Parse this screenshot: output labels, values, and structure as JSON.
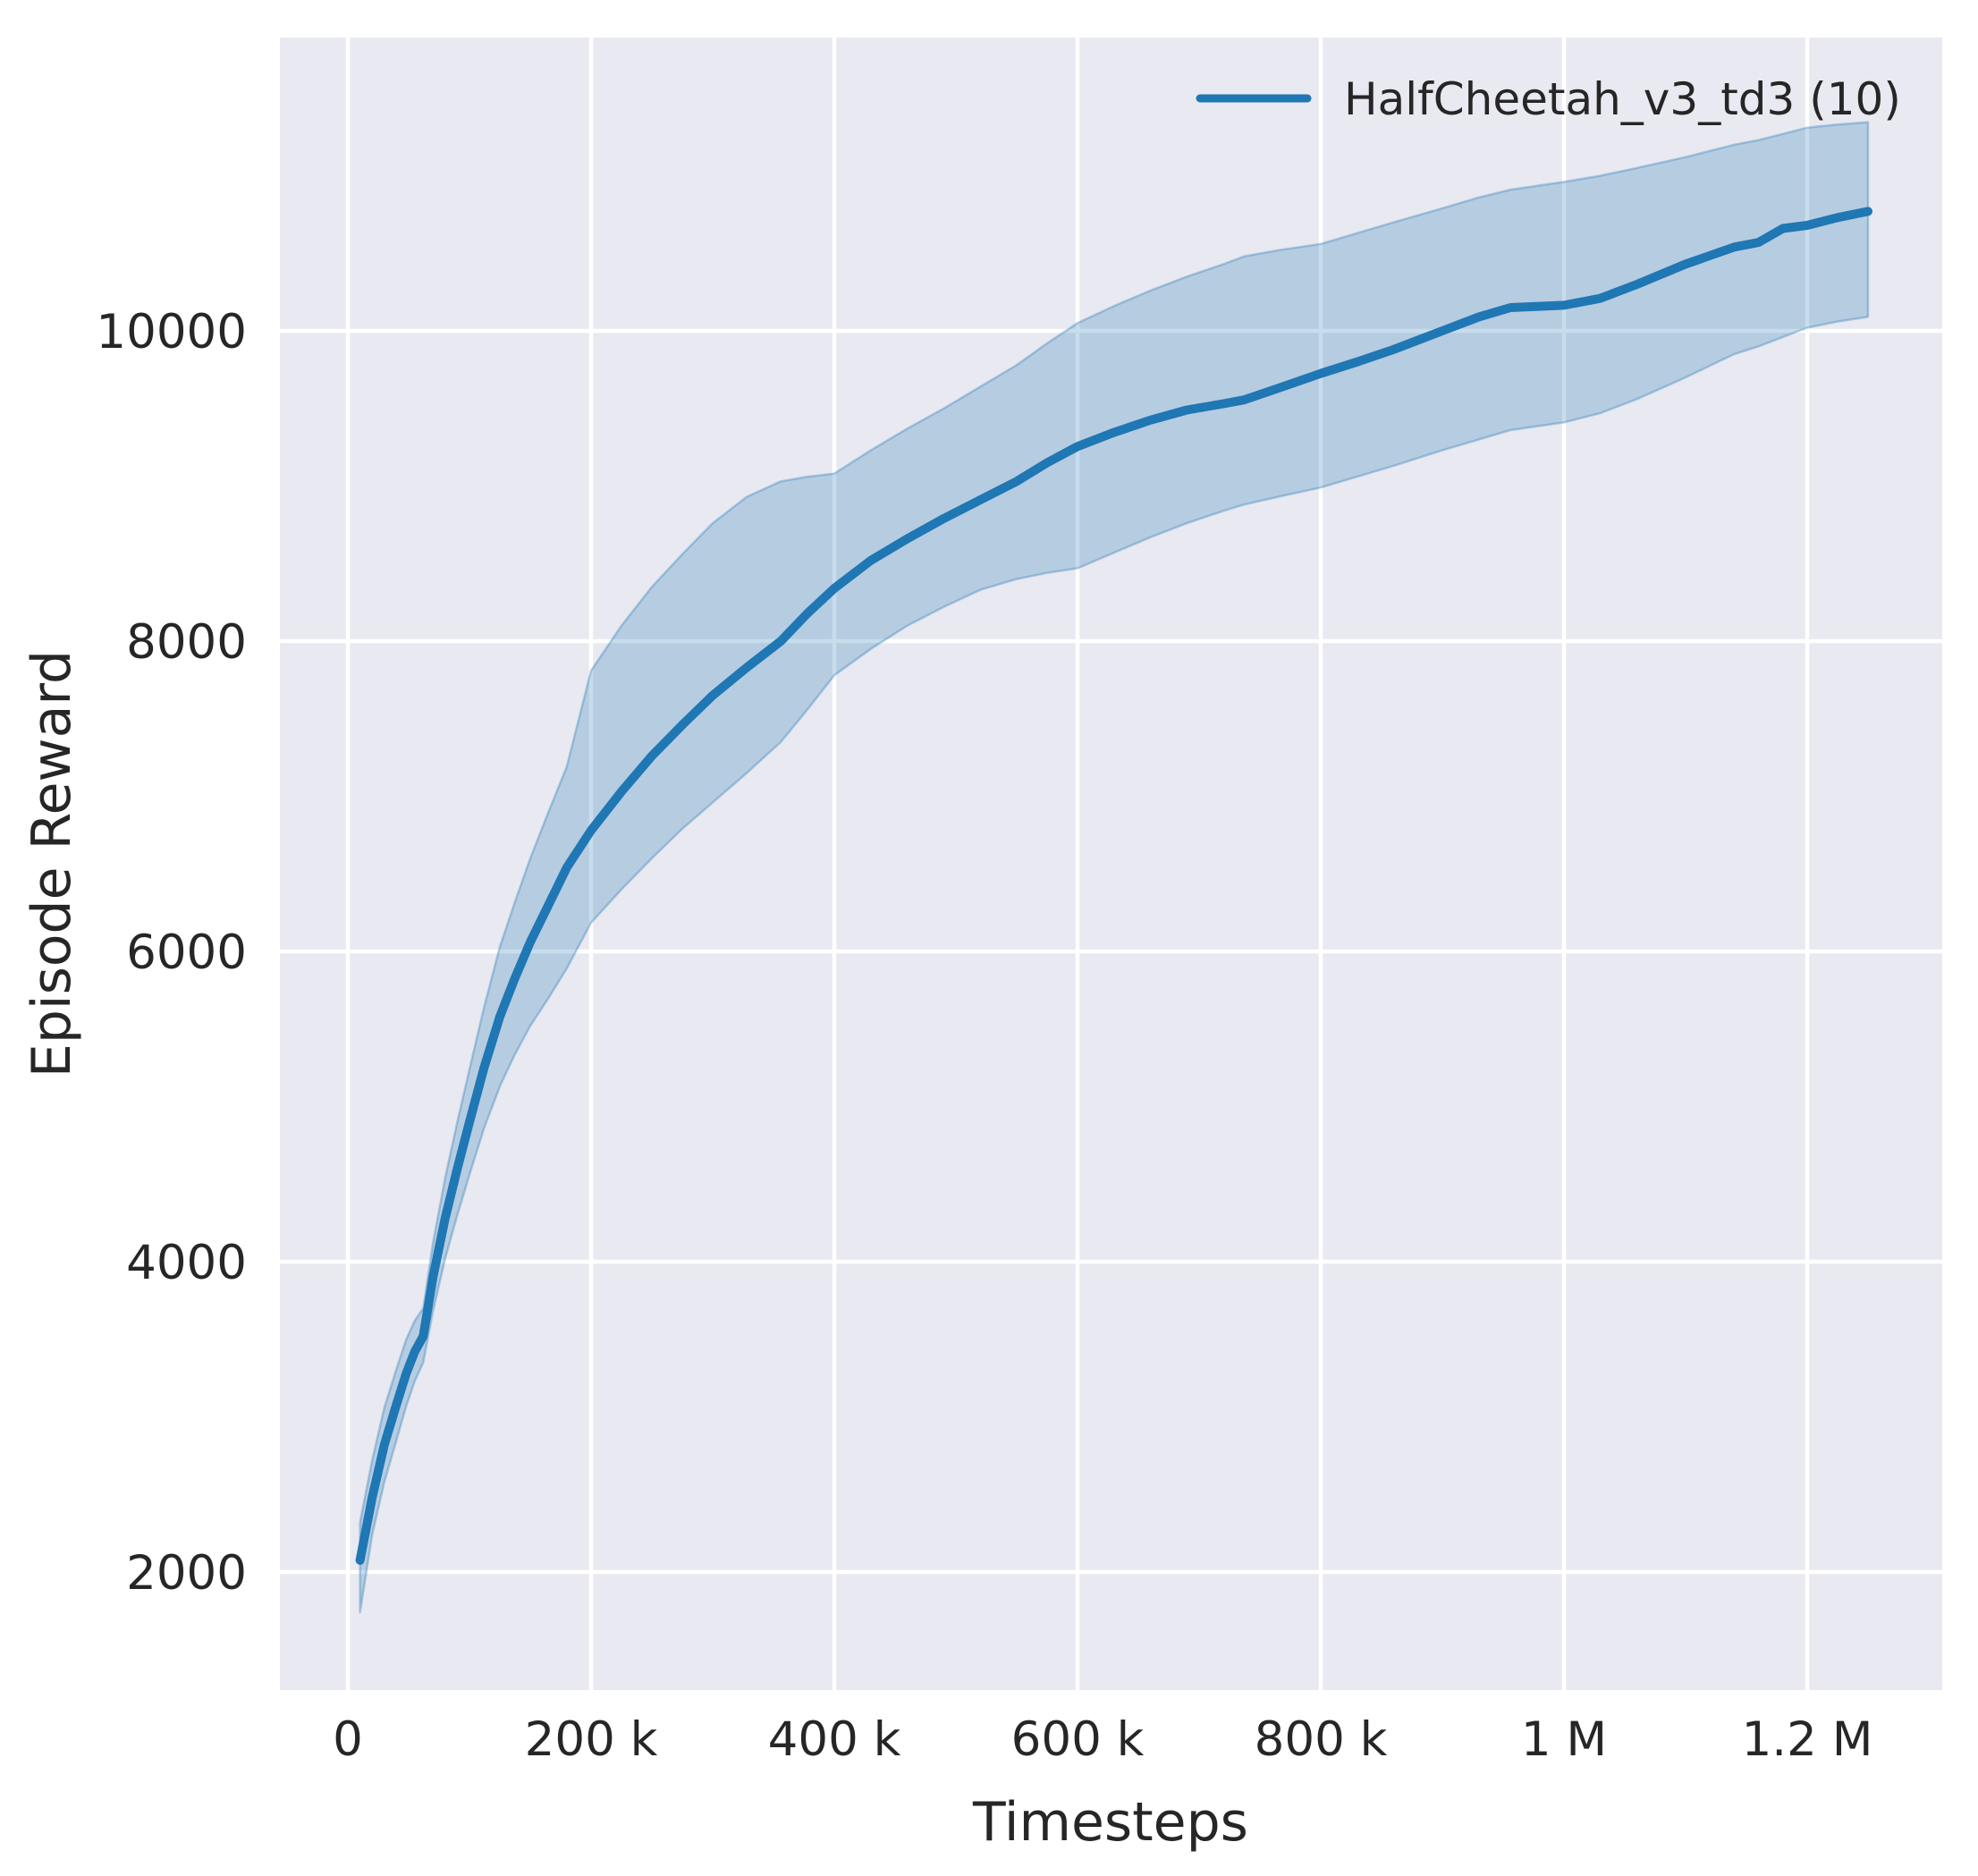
{
  "chart_data": {
    "type": "line",
    "title": "",
    "xlabel": "Timesteps",
    "ylabel": "Episode Reward",
    "x_unit": "thousands of timesteps",
    "xlim_k": [
      -55.9,
      1311
    ],
    "ylim": [
      1239,
      11890
    ],
    "grid": true,
    "grid_color": "#ffffff",
    "axes_background": "#e9e9f1",
    "figure_background": "#ffffff",
    "legend_position": "upper right",
    "x_ticks": [
      {
        "value_k": 0,
        "label": "0"
      },
      {
        "value_k": 200,
        "label": "200 k"
      },
      {
        "value_k": 400,
        "label": "400 k"
      },
      {
        "value_k": 600,
        "label": "600 k"
      },
      {
        "value_k": 800,
        "label": "800 k"
      },
      {
        "value_k": 1000,
        "label": "1 M"
      },
      {
        "value_k": 1200,
        "label": "1.2 M"
      }
    ],
    "y_ticks": [
      {
        "value": 2000,
        "label": "2000"
      },
      {
        "value": 4000,
        "label": "4000"
      },
      {
        "value": 6000,
        "label": "6000"
      },
      {
        "value": 8000,
        "label": "8000"
      },
      {
        "value": 10000,
        "label": "10000"
      }
    ],
    "series": [
      {
        "name": "HalfCheetah_v3_td3 (10)",
        "color": "#1f77b4",
        "line_width": 10,
        "band_fill_opacity": 0.25,
        "band_edge_opacity": 0.32,
        "x_k": [
          10,
          20,
          30,
          40,
          48,
          55,
          62,
          70,
          80,
          90,
          100,
          112,
          125,
          137,
          150,
          165,
          180,
          200,
          225,
          250,
          275,
          300,
          328,
          356,
          378,
          400,
          430,
          460,
          490,
          520,
          550,
          575,
          600,
          630,
          660,
          690,
          720,
          737,
          765,
          800,
          830,
          860,
          900,
          930,
          956,
          1000,
          1030,
          1060,
          1100,
          1140,
          1160,
          1180,
          1200,
          1225,
          1250
        ],
        "mean": [
          2075,
          2480,
          2820,
          3080,
          3280,
          3420,
          3520,
          3900,
          4280,
          4600,
          4900,
          5250,
          5580,
          5820,
          6060,
          6300,
          6540,
          6780,
          7030,
          7260,
          7460,
          7650,
          7830,
          8000,
          8180,
          8340,
          8520,
          8660,
          8790,
          8910,
          9030,
          9150,
          9255,
          9345,
          9425,
          9490,
          9530,
          9555,
          9630,
          9725,
          9800,
          9880,
          10000,
          10090,
          10150,
          10165,
          10210,
          10300,
          10430,
          10540,
          10570,
          10660,
          10680,
          10730,
          10770
        ],
        "lo": [
          1740,
          2240,
          2580,
          2850,
          3070,
          3230,
          3350,
          3680,
          4020,
          4300,
          4560,
          4860,
          5130,
          5330,
          5520,
          5700,
          5890,
          6185,
          6400,
          6600,
          6790,
          6960,
          7150,
          7350,
          7560,
          7780,
          7950,
          8100,
          8220,
          8330,
          8400,
          8440,
          8470,
          8570,
          8670,
          8760,
          8840,
          8880,
          8930,
          8990,
          9060,
          9130,
          9230,
          9300,
          9360,
          9410,
          9470,
          9560,
          9700,
          9850,
          9900,
          9960,
          10020,
          10060,
          10090
        ],
        "hi": [
          2320,
          2720,
          3060,
          3310,
          3500,
          3620,
          3700,
          4120,
          4540,
          4900,
          5240,
          5640,
          6030,
          6310,
          6600,
          6900,
          7190,
          7810,
          8100,
          8350,
          8560,
          8760,
          8930,
          9030,
          9060,
          9080,
          9230,
          9370,
          9500,
          9640,
          9780,
          9920,
          10050,
          10160,
          10260,
          10350,
          10430,
          10480,
          10520,
          10560,
          10630,
          10700,
          10790,
          10860,
          10910,
          10960,
          11000,
          11050,
          11120,
          11200,
          11230,
          11270,
          11310,
          11330,
          11345
        ]
      }
    ]
  },
  "legend": {
    "entries": [
      {
        "label": "HalfCheetah_v3_td3 (10)",
        "color": "#1f77b4"
      }
    ]
  },
  "colors": {
    "accent_line": "#1f77b4",
    "band_fill": "#b8cfe4",
    "text": "#262626",
    "axes_background": "#e9e9f1",
    "grid": "#ffffff"
  }
}
